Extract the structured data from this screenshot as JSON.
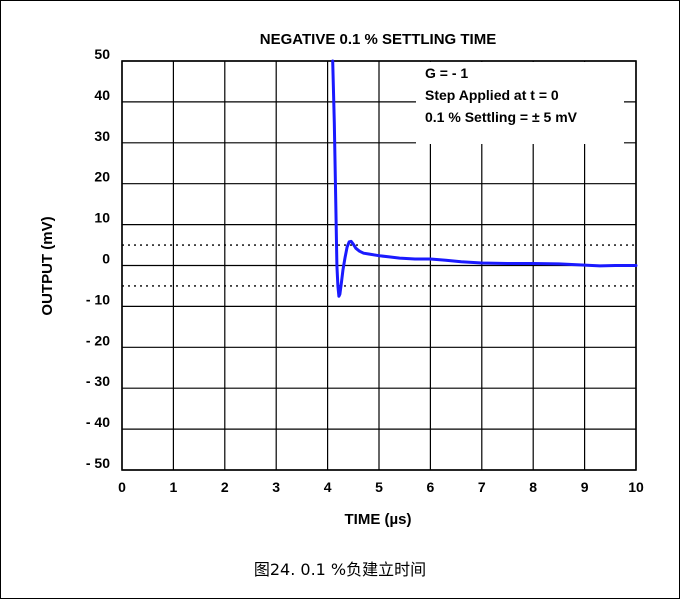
{
  "chart_data": {
    "type": "line",
    "title": "NEGATIVE 0.1 % SETTLING TIME",
    "xlabel": "TIME (µs)",
    "ylabel": "OUTPUT (mV)",
    "xlim": [
      0,
      10
    ],
    "ylim": [
      -50,
      50
    ],
    "x_ticks": [
      "0",
      "1",
      "2",
      "3",
      "4",
      "5",
      "6",
      "7",
      "8",
      "9",
      "10"
    ],
    "y_ticks": [
      "50",
      "40",
      "30",
      "20",
      "10",
      "0",
      "- 10",
      "- 20",
      "- 30",
      "- 40",
      "- 50"
    ],
    "grid": true,
    "reference_lines": [
      5,
      -5
    ],
    "annotations": [
      "G = - 1",
      "Step Applied at t = 0",
      "0.1 % Settling = ± 5 mV"
    ],
    "series": [
      {
        "color": "#1a1aff",
        "x": [
          4.1,
          4.13,
          4.16,
          4.18,
          4.2,
          4.22,
          4.24,
          4.27,
          4.3,
          4.34,
          4.38,
          4.42,
          4.46,
          4.5,
          4.55,
          4.62,
          4.7,
          4.8,
          5.0,
          5.2,
          5.4,
          5.7,
          6.0,
          6.3,
          6.6,
          7.0,
          7.5,
          8.0,
          8.5,
          9.0,
          9.3,
          9.6,
          10.0
        ],
        "y": [
          50,
          35,
          15,
          0,
          -5,
          -7.5,
          -7,
          -4,
          -1,
          2,
          4.5,
          5.8,
          5.9,
          5.2,
          4.2,
          3.5,
          3.0,
          2.8,
          2.4,
          2.1,
          1.8,
          1.6,
          1.6,
          1.3,
          0.9,
          0.6,
          0.5,
          0.5,
          0.4,
          0.1,
          -0.1,
          0.0,
          0.0
        ]
      }
    ]
  },
  "caption": "图24.    0.1 %负建立时间"
}
